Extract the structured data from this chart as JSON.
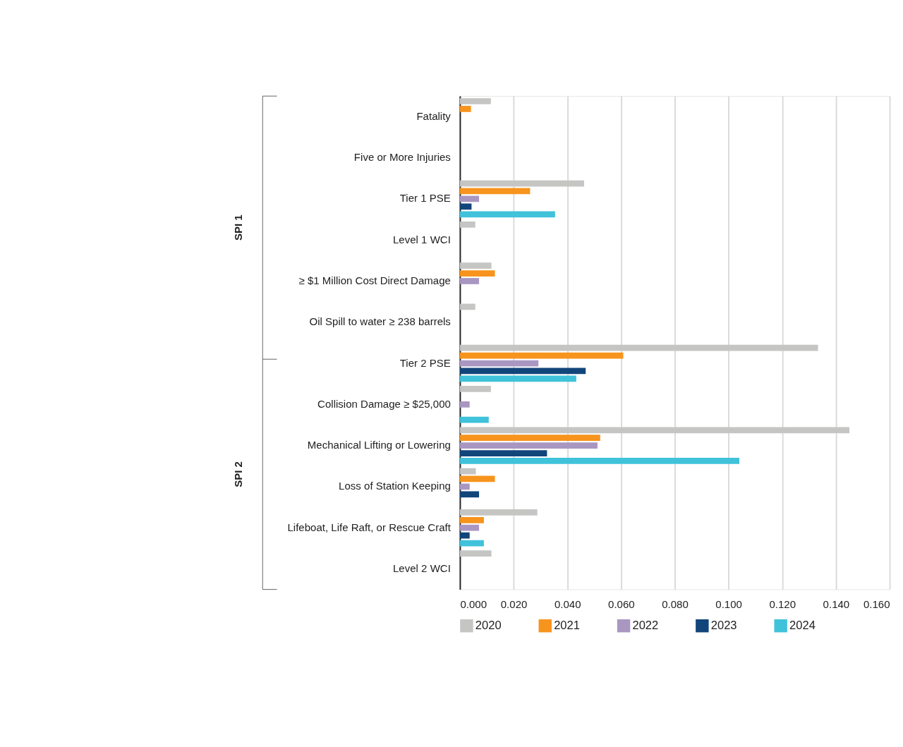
{
  "chart_data": {
    "type": "bar",
    "orientation": "horizontal",
    "categories": [
      "Fatality",
      "Five or More Injuries",
      "Tier 1 PSE",
      "Level 1 WCI",
      "≥ $1 Million Cost Direct Damage",
      "Oil Spill to water ≥ 238 barrels",
      "Tier 2 PSE",
      "Collision Damage ≥ $25,000",
      "Mechanical Lifting or Lowering",
      "Loss of Station Keeping",
      "Lifeboat, Life Raft, or Rescue Craft",
      "Level 2 WCI"
    ],
    "series": [
      {
        "name": "2020",
        "color": "#c5c6c3",
        "values": [
          0.0115,
          null,
          0.0462,
          0.0057,
          0.0117,
          0.0057,
          0.1333,
          0.0115,
          0.145,
          0.0059,
          0.0288,
          0.0117
        ]
      },
      {
        "name": "2021",
        "color": "#f7941d",
        "values": [
          0.0041,
          null,
          0.0261,
          null,
          0.013,
          null,
          0.0608,
          null,
          0.0522,
          0.013,
          0.0089,
          null
        ]
      },
      {
        "name": "2022",
        "color": "#a997c2",
        "values": [
          null,
          null,
          0.0071,
          null,
          0.0071,
          null,
          0.0292,
          0.0036,
          0.0512,
          0.0036,
          0.0071,
          null
        ]
      },
      {
        "name": "2023",
        "color": "#12457a",
        "values": [
          null,
          null,
          0.0043,
          null,
          null,
          null,
          0.0468,
          null,
          0.0324,
          0.0071,
          0.0036,
          null
        ]
      },
      {
        "name": "2024",
        "color": "#40c2da",
        "values": [
          null,
          null,
          0.0354,
          null,
          null,
          null,
          0.0433,
          0.0107,
          0.104,
          null,
          0.0089,
          null
        ]
      }
    ],
    "xlim": [
      0,
      0.16
    ],
    "xticks": [
      {
        "value": 0,
        "label": "0.000"
      },
      {
        "value": 0.02,
        "label": "0.020"
      },
      {
        "value": 0.04,
        "label": "0.040"
      },
      {
        "value": 0.06,
        "label": "0.060"
      },
      {
        "value": 0.08,
        "label": "0.080"
      },
      {
        "value": 0.1,
        "label": "0.100"
      },
      {
        "value": 0.12,
        "label": "0.120"
      },
      {
        "value": 0.14,
        "label": "0.140"
      },
      {
        "value": 0.16,
        "label": "0.160"
      }
    ],
    "annotations": [
      "SPI 1",
      "SPI 2"
    ],
    "grid": "x",
    "legend": "bottom"
  }
}
